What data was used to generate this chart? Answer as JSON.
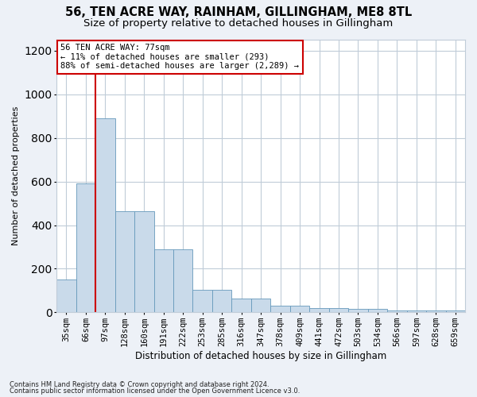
{
  "title": "56, TEN ACRE WAY, RAINHAM, GILLINGHAM, ME8 8TL",
  "subtitle": "Size of property relative to detached houses in Gillingham",
  "xlabel": "Distribution of detached houses by size in Gillingham",
  "ylabel": "Number of detached properties",
  "categories": [
    "35sqm",
    "66sqm",
    "97sqm",
    "128sqm",
    "160sqm",
    "191sqm",
    "222sqm",
    "253sqm",
    "285sqm",
    "316sqm",
    "347sqm",
    "378sqm",
    "409sqm",
    "441sqm",
    "472sqm",
    "503sqm",
    "534sqm",
    "566sqm",
    "597sqm",
    "628sqm",
    "659sqm"
  ],
  "values": [
    150,
    590,
    890,
    465,
    465,
    290,
    290,
    105,
    105,
    65,
    65,
    32,
    32,
    20,
    20,
    15,
    15,
    8,
    8,
    10,
    10
  ],
  "bar_color": "#c9daea",
  "bar_edge_color": "#6699bb",
  "vline_x": 1.5,
  "vline_color": "#cc0000",
  "annotation_line1": "56 TEN ACRE WAY: 77sqm",
  "annotation_line2": "← 11% of detached houses are smaller (293)",
  "annotation_line3": "88% of semi-detached houses are larger (2,289) →",
  "annotation_box_facecolor": "#ffffff",
  "annotation_box_edgecolor": "#cc0000",
  "ylim": [
    0,
    1250
  ],
  "yticks": [
    0,
    200,
    400,
    600,
    800,
    1000,
    1200
  ],
  "title_fontsize": 10.5,
  "subtitle_fontsize": 9.5,
  "axis_fontsize": 8,
  "tick_fontsize": 7.5,
  "footnote1": "Contains HM Land Registry data © Crown copyright and database right 2024.",
  "footnote2": "Contains public sector information licensed under the Open Government Licence v3.0.",
  "fig_facecolor": "#edf1f7",
  "plot_facecolor": "#ffffff",
  "grid_color": "#c0ccd8"
}
